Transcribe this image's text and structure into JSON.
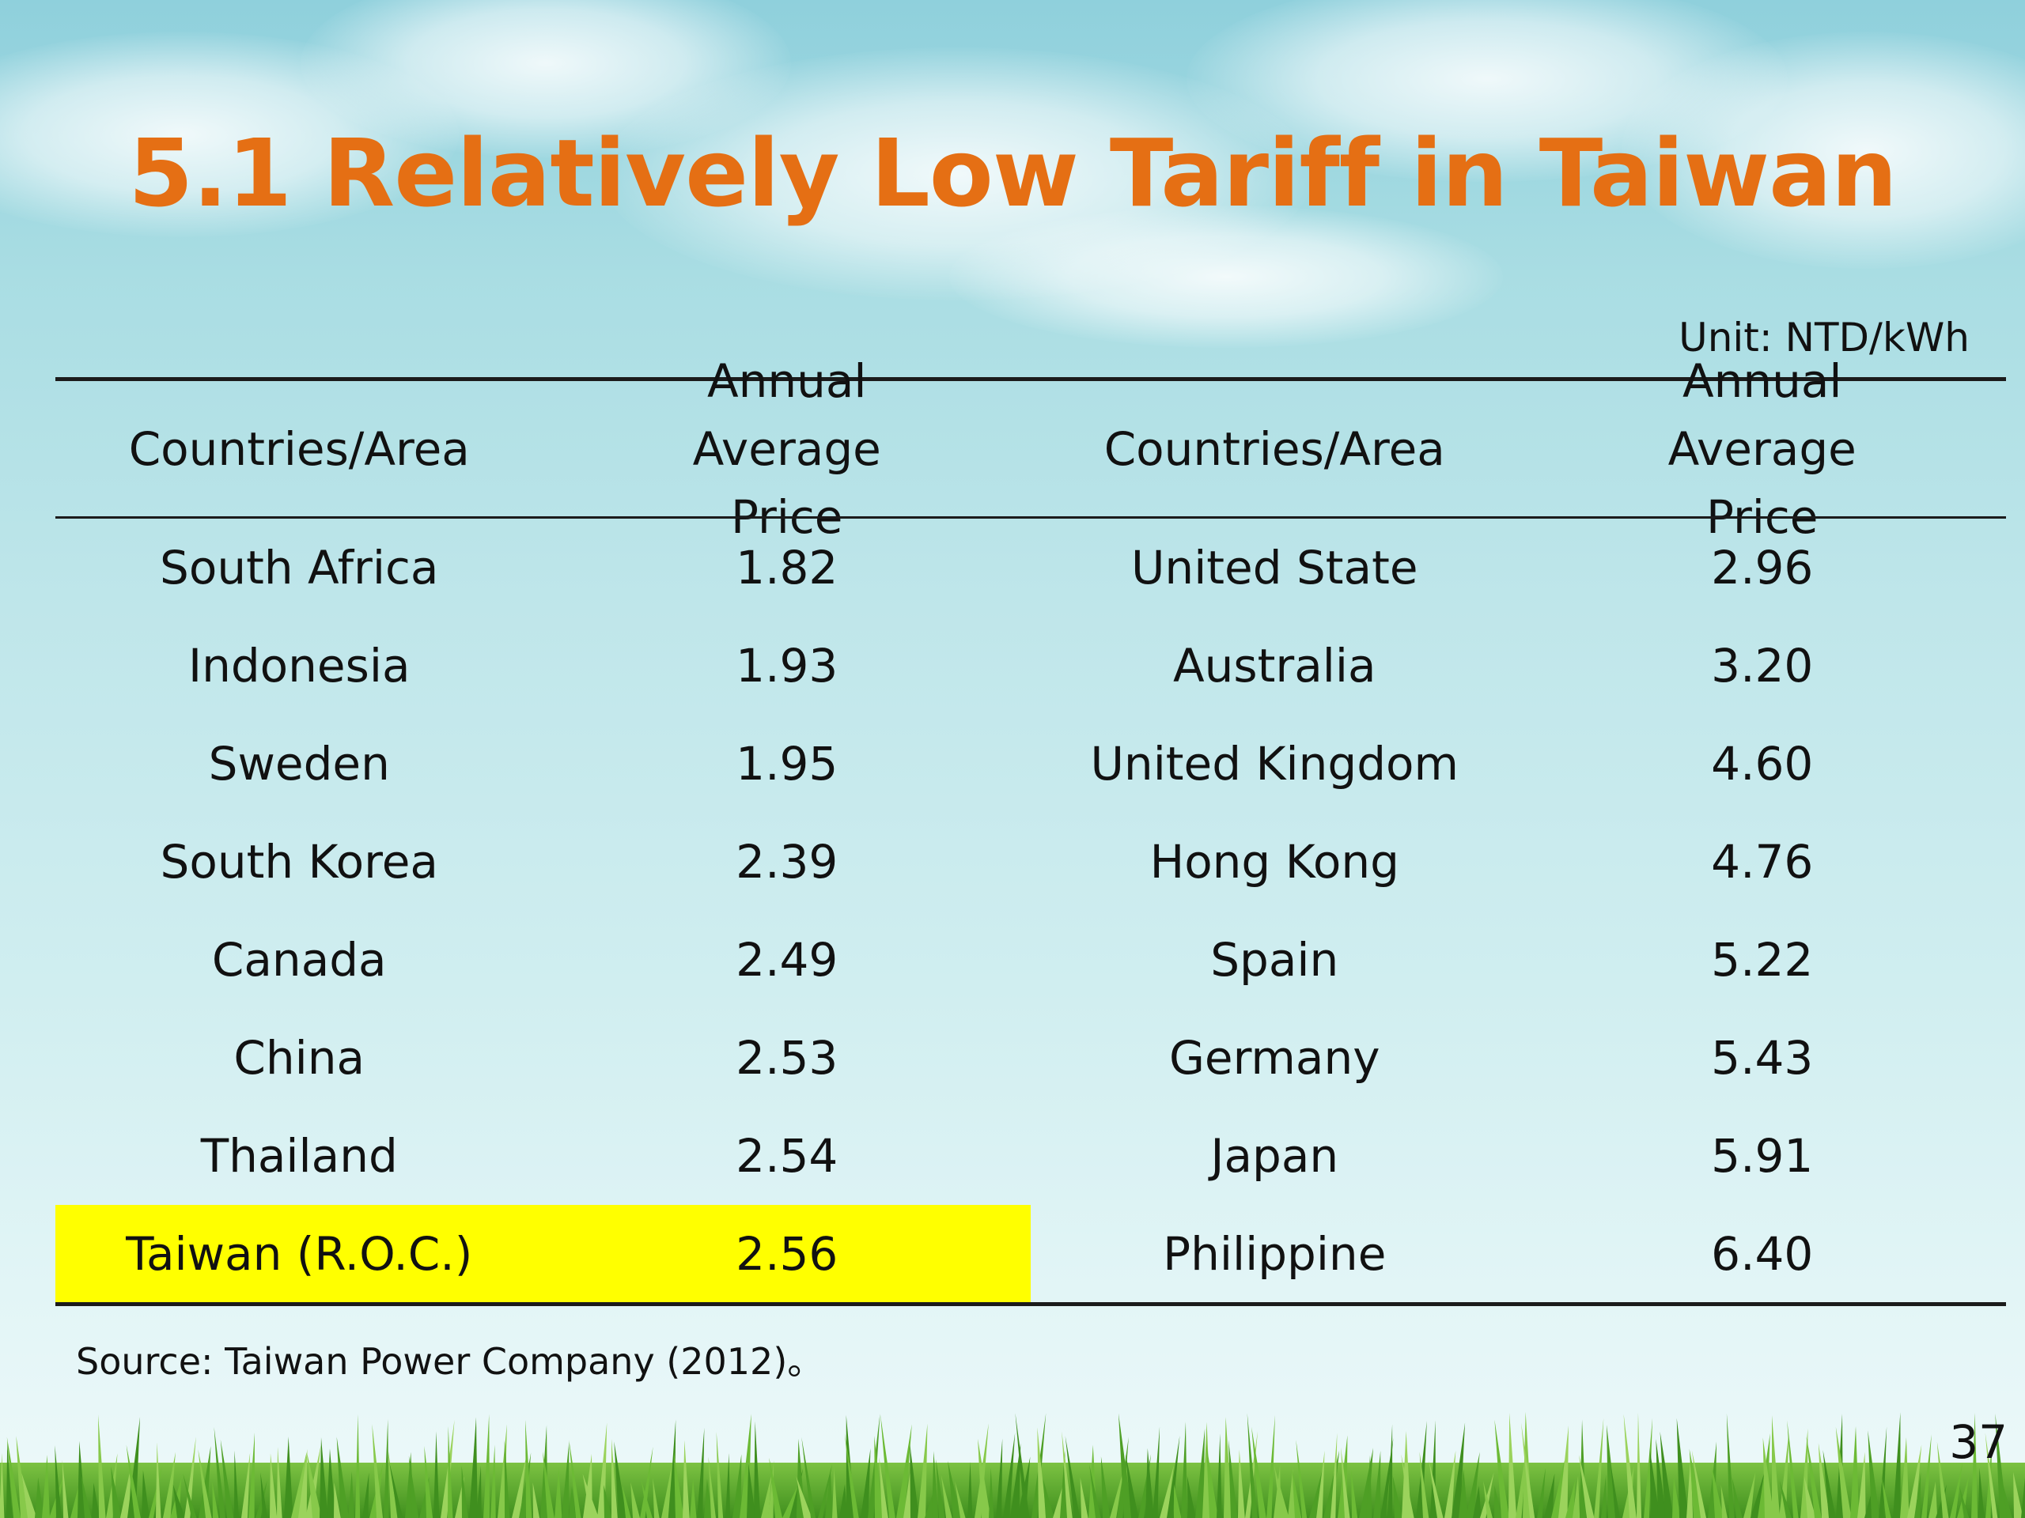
{
  "title": "5.1 Relatively Low Tariff in Taiwan",
  "unit": "Unit: NTD/kWh",
  "table": {
    "headers": [
      "Countries/Area",
      "Annual Average Price",
      "Countries/Area",
      "Annual Average Price"
    ],
    "rows": [
      {
        "country_a": "South Africa",
        "price_a": "1.82",
        "country_b": "United State",
        "price_b": "2.96"
      },
      {
        "country_a": "Indonesia",
        "price_a": "1.93",
        "country_b": "Australia",
        "price_b": "3.20"
      },
      {
        "country_a": "Sweden",
        "price_a": "1.95",
        "country_b": "United Kingdom",
        "price_b": "4.60"
      },
      {
        "country_a": "South Korea",
        "price_a": "2.39",
        "country_b": "Hong Kong",
        "price_b": "4.76"
      },
      {
        "country_a": "Canada",
        "price_a": "2.49",
        "country_b": "Spain",
        "price_b": "5.22"
      },
      {
        "country_a": "China",
        "price_a": "2.53",
        "country_b": "Germany",
        "price_b": "5.43"
      },
      {
        "country_a": "Thailand",
        "price_a": "2.54",
        "country_b": "Japan",
        "price_b": "5.91"
      },
      {
        "country_a": "Taiwan (R.O.C.)",
        "price_a": "2.56",
        "country_b": "Philippine",
        "price_b": "6.40"
      }
    ],
    "highlight_row": 7,
    "highlight_color": "#ffff00"
  },
  "source": "Source: Taiwan Power Company (2012)。",
  "page_number": "37",
  "colors": {
    "title": "#e56f14",
    "sky_top": "#8fd0dc",
    "sky_bottom": "#eef9fa",
    "grass": "#5fae2e"
  }
}
